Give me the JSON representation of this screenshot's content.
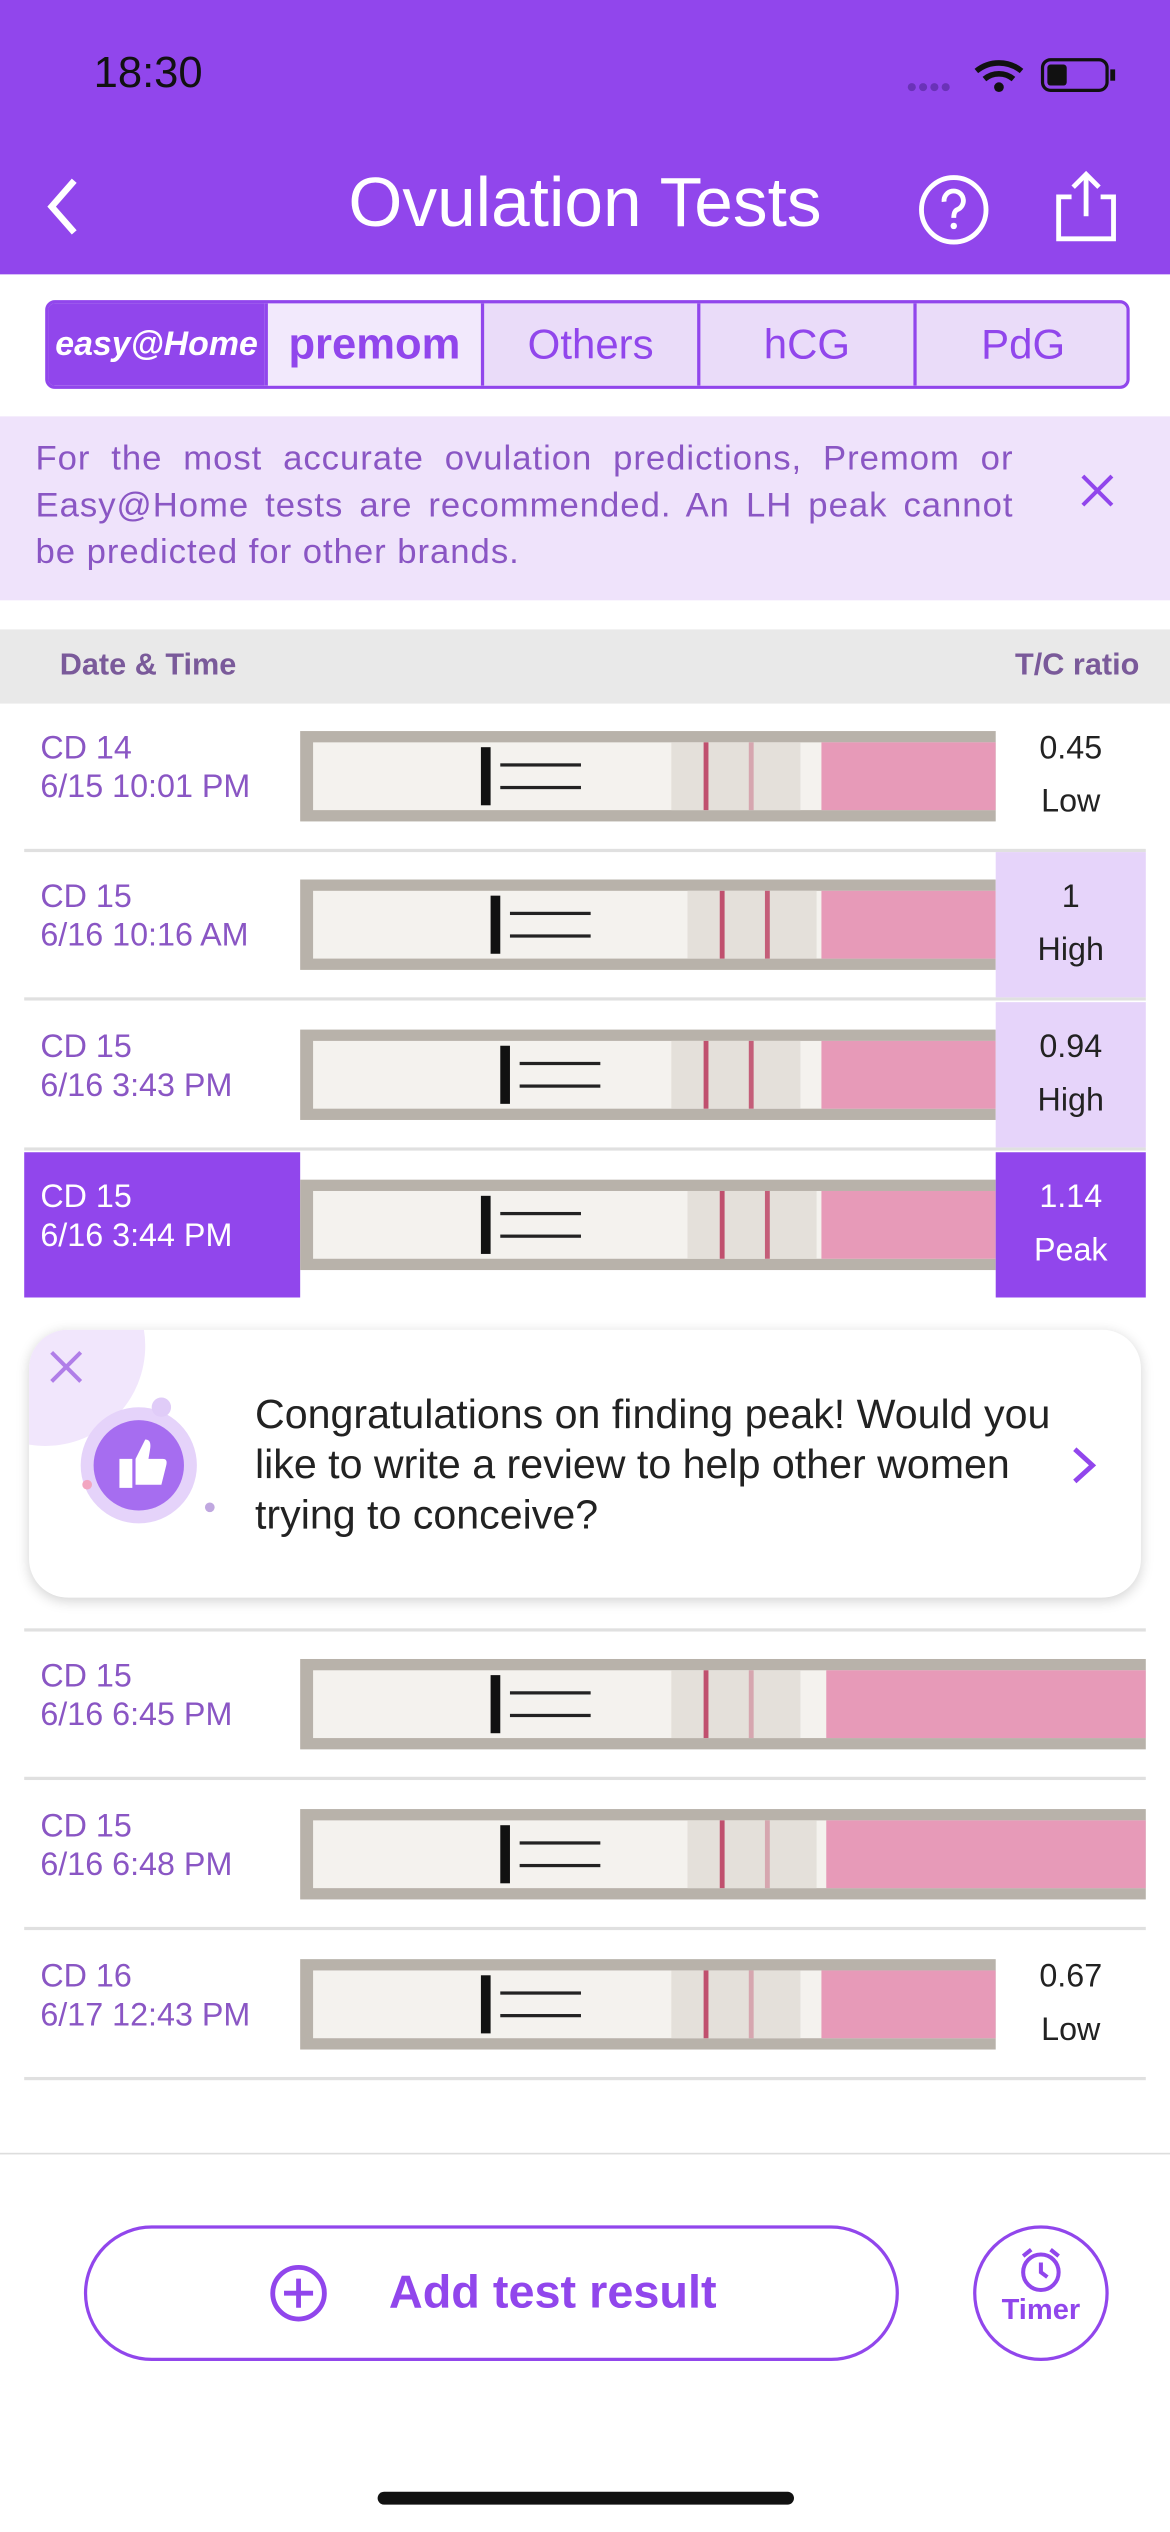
{
  "status_bar": {
    "time": "18:30"
  },
  "header": {
    "title": "Ovulation Tests"
  },
  "tabs": {
    "brand_1": "easy@Home",
    "brand_2": "premom",
    "others": [
      "Others",
      "hCG",
      "PdG"
    ]
  },
  "banner": {
    "text": "For the most accurate ovulation predictions, Premom or Easy@Home tests are recommended. An LH peak cannot be predicted for other brands."
  },
  "table": {
    "columns": [
      "Date & Time",
      "T/C ratio"
    ],
    "rows": [
      {
        "cycle_day": "CD 14",
        "datetime": "6/15 10:01 PM",
        "ratio": "0.45",
        "level": "Low"
      },
      {
        "cycle_day": "CD 15",
        "datetime": "6/16 10:16 AM",
        "ratio": "1",
        "level": "High"
      },
      {
        "cycle_day": "CD 15",
        "datetime": "6/16 3:43 PM",
        "ratio": "0.94",
        "level": "High"
      },
      {
        "cycle_day": "CD 15",
        "datetime": "6/16 3:44 PM",
        "ratio": "1.14",
        "level": "Peak"
      },
      {
        "cycle_day": "CD 15",
        "datetime": "6/16 6:45 PM"
      },
      {
        "cycle_day": "CD 15",
        "datetime": "6/16 6:48 PM"
      },
      {
        "cycle_day": "CD 16",
        "datetime": "6/17 12:43 PM",
        "ratio": "0.67",
        "level": "Low"
      }
    ]
  },
  "popup": {
    "text": "Congratulations on finding peak! Would you like to write a review to help other women trying to conceive?"
  },
  "actions": {
    "add": "Add test result",
    "timer": "Timer"
  }
}
